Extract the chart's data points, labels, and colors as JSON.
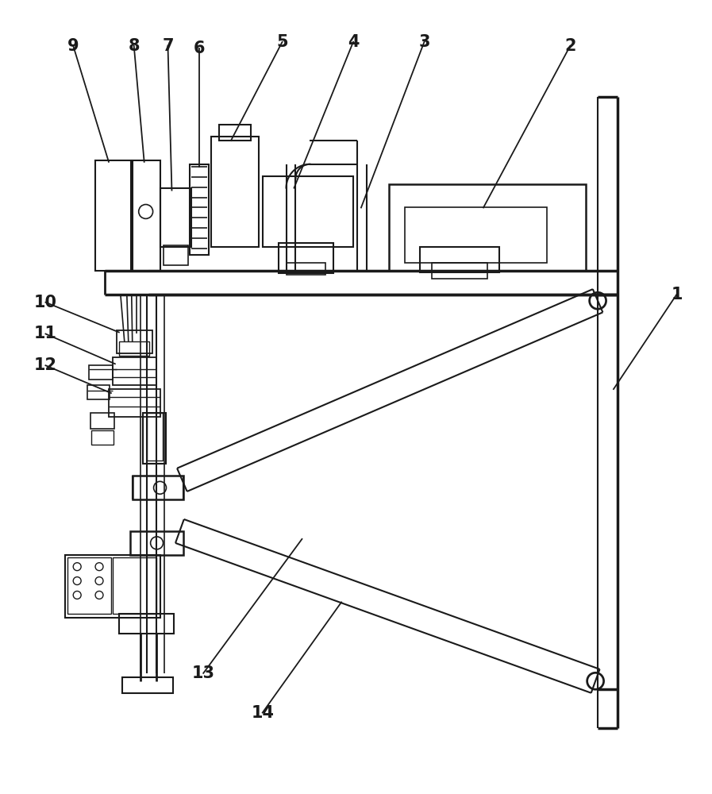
{
  "bg_color": "#ffffff",
  "line_color": "#1a1a1a",
  "fig_width": 8.97,
  "fig_height": 10.0
}
